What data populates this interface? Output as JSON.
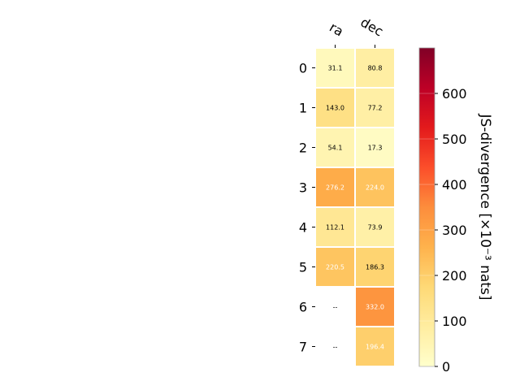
{
  "chart_data": {
    "type": "heatmap",
    "columns": [
      "ra",
      "dec"
    ],
    "rows": [
      "0",
      "1",
      "2",
      "3",
      "4",
      "5",
      "6",
      "7"
    ],
    "values": [
      [
        31.1,
        80.8
      ],
      [
        143.0,
        77.2
      ],
      [
        54.1,
        17.3
      ],
      [
        276.2,
        224.0
      ],
      [
        112.1,
        73.9
      ],
      [
        220.5,
        186.3
      ],
      [
        null,
        332.0
      ],
      [
        null,
        196.4
      ]
    ],
    "labels": [
      [
        "31.1",
        "80.8"
      ],
      [
        "143.0",
        "77.2"
      ],
      [
        "54.1",
        "17.3"
      ],
      [
        "276.2",
        "224.0"
      ],
      [
        "112.1",
        "73.9"
      ],
      [
        "220.5",
        "186.3"
      ],
      [
        "--",
        "332.0"
      ],
      [
        "--",
        "196.4"
      ]
    ],
    "colorbar": {
      "label": "JS-divergence [×10⁻³ nats]",
      "ticks": [
        "0",
        "100",
        "200",
        "300",
        "400",
        "500",
        "600"
      ],
      "range": [
        0,
        700
      ],
      "colormap": "YlOrRd"
    }
  }
}
